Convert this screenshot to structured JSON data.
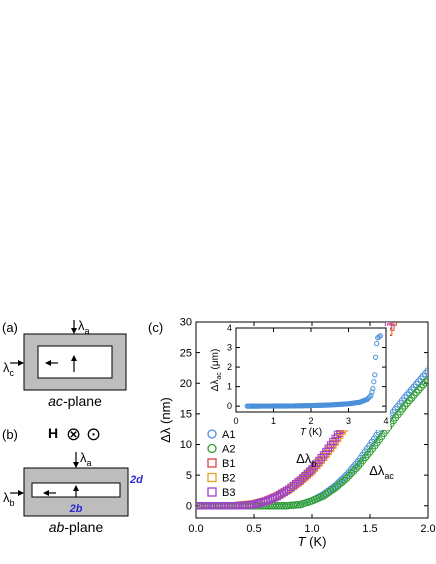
{
  "panels": {
    "a": {
      "label": "(a)",
      "plane_prefix": "ac",
      "plane_suffix": "-plane",
      "lambda_top": "λ",
      "lambda_top_sub": "a",
      "lambda_left": "λ",
      "lambda_left_sub": "c"
    },
    "b": {
      "label": "(b)",
      "field_symbol": "H",
      "field_in": "⊗",
      "field_out": "⊙",
      "plane_prefix": "ab",
      "plane_suffix": "-plane",
      "lambda_top": "λ",
      "lambda_top_sub": "a",
      "lambda_left": "λ",
      "lambda_left_sub": "b",
      "width_label": "2b",
      "thickness_label": "2d",
      "dimension_color": "#2a2ad0"
    },
    "c": {
      "label": "(c)"
    }
  },
  "chart_data": [
    {
      "type": "scatter",
      "xlabel_italic": "T",
      "xlabel_unit": " (K)",
      "ylabel_prefix": "Δλ",
      "ylabel_unit": " (nm)",
      "xlim": [
        0,
        2.0
      ],
      "ylim": [
        -2,
        30
      ],
      "xticks": [
        0.0,
        0.5,
        1.0,
        1.5,
        2.0
      ],
      "xtick_labels": [
        "0.0",
        "0.5",
        "1.0",
        "1.5",
        "2.0"
      ],
      "yticks": [
        0,
        5,
        10,
        15,
        20,
        25,
        30
      ],
      "ytick_labels": [
        "0",
        "5",
        "10",
        "15",
        "20",
        "25",
        "30"
      ],
      "grid": false,
      "legend_position": "bottom-left",
      "annotations": [
        {
          "text": "Δλ",
          "sub": "b",
          "x": 0.95,
          "y": 7.0
        },
        {
          "text": "Δλ",
          "sub": "ac",
          "x": 1.6,
          "y": 5.0
        }
      ],
      "series": [
        {
          "name": "A1",
          "marker": "circle",
          "color": "#4a90d9",
          "t0": 0.78,
          "points": [
            [
              0.78,
              0
            ],
            [
              0.9,
              0.2
            ],
            [
              1.0,
              0.8
            ],
            [
              1.1,
              1.8
            ],
            [
              1.2,
              3.2
            ],
            [
              1.3,
              5.0
            ],
            [
              1.4,
              7.2
            ],
            [
              1.5,
              9.8
            ],
            [
              1.6,
              12.6
            ],
            [
              1.7,
              15.2
            ],
            [
              1.8,
              17.6
            ],
            [
              1.9,
              19.8
            ],
            [
              2.0,
              22.0
            ]
          ]
        },
        {
          "name": "A2",
          "marker": "circle",
          "color": "#2e9e2e",
          "t0": 0.78,
          "points": [
            [
              0.78,
              0
            ],
            [
              0.9,
              0.2
            ],
            [
              1.0,
              0.8
            ],
            [
              1.1,
              1.6
            ],
            [
              1.2,
              2.9
            ],
            [
              1.3,
              4.5
            ],
            [
              1.4,
              6.5
            ],
            [
              1.5,
              8.8
            ],
            [
              1.6,
              11.3
            ],
            [
              1.7,
              13.9
            ],
            [
              1.8,
              16.3
            ],
            [
              1.9,
              18.5
            ],
            [
              2.0,
              20.6
            ]
          ]
        },
        {
          "name": "B1",
          "marker": "square",
          "color": "#d94040",
          "t0": 0.34,
          "points": [
            [
              0.34,
              0
            ],
            [
              0.5,
              0.3
            ],
            [
              0.6,
              0.8
            ],
            [
              0.7,
              1.6
            ],
            [
              0.8,
              2.7
            ],
            [
              0.9,
              4.1
            ],
            [
              1.0,
              5.8
            ],
            [
              1.1,
              8.0
            ],
            [
              1.2,
              10.6
            ],
            [
              1.3,
              13.7
            ],
            [
              1.4,
              17.3
            ],
            [
              1.5,
              21.3
            ],
            [
              1.6,
              25.8
            ],
            [
              1.7,
              30.0
            ]
          ]
        },
        {
          "name": "B2",
          "marker": "square",
          "color": "#f0a020",
          "t0": 0.4,
          "points": [
            [
              0.4,
              0
            ],
            [
              0.5,
              0.2
            ],
            [
              0.6,
              0.7
            ],
            [
              0.7,
              1.5
            ],
            [
              0.8,
              2.6
            ],
            [
              0.9,
              4.0
            ],
            [
              1.0,
              5.7
            ],
            [
              1.1,
              7.9
            ],
            [
              1.2,
              10.4
            ],
            [
              1.3,
              13.3
            ],
            [
              1.35,
              15.2
            ],
            [
              1.4,
              16.8
            ],
            [
              1.5,
              20.8
            ],
            [
              1.6,
              25.0
            ],
            [
              1.66,
              28.5
            ]
          ]
        },
        {
          "name": "B3",
          "marker": "square",
          "color": "#9a40d0",
          "t0": 0.4,
          "points": [
            [
              0.4,
              0
            ],
            [
              0.5,
              0.2
            ],
            [
              0.6,
              0.7
            ],
            [
              0.7,
              1.5
            ],
            [
              0.8,
              2.7
            ],
            [
              0.9,
              4.2
            ],
            [
              1.0,
              6.0
            ],
            [
              1.1,
              8.3
            ],
            [
              1.2,
              11.0
            ],
            [
              1.3,
              14.3
            ],
            [
              1.4,
              17.9
            ],
            [
              1.5,
              22.0
            ],
            [
              1.6,
              26.6
            ],
            [
              1.66,
              29.5
            ]
          ]
        }
      ]
    },
    {
      "type": "scatter",
      "role": "inset",
      "xlabel_italic": "T",
      "xlabel_unit": " (K)",
      "ylabel_prefix": "Δλ",
      "ylabel_sub": "ac",
      "ylabel_unit": " (μm)",
      "xlim": [
        0,
        4
      ],
      "ylim": [
        -0.3,
        4
      ],
      "xticks": [
        0,
        1,
        2,
        3,
        4
      ],
      "xtick_labels": [
        "0",
        "1",
        "2",
        "3",
        "4"
      ],
      "yticks": [
        0,
        1,
        2,
        3,
        4
      ],
      "ytick_labels": [
        "0",
        "1",
        "2",
        "3",
        "4"
      ],
      "series": [
        {
          "name": "A1",
          "marker": "circle",
          "color": "#4a90d9",
          "points": [
            [
              0.3,
              0.0
            ],
            [
              1.0,
              0.005
            ],
            [
              1.5,
              0.01
            ],
            [
              2.0,
              0.03
            ],
            [
              2.5,
              0.06
            ],
            [
              3.0,
              0.12
            ],
            [
              3.3,
              0.2
            ],
            [
              3.5,
              0.35
            ],
            [
              3.6,
              0.55
            ],
            [
              3.65,
              0.9
            ],
            [
              3.7,
              1.6
            ],
            [
              3.72,
              2.5
            ],
            [
              3.75,
              3.2
            ],
            [
              3.78,
              3.5
            ],
            [
              3.85,
              3.6
            ]
          ]
        }
      ]
    }
  ]
}
